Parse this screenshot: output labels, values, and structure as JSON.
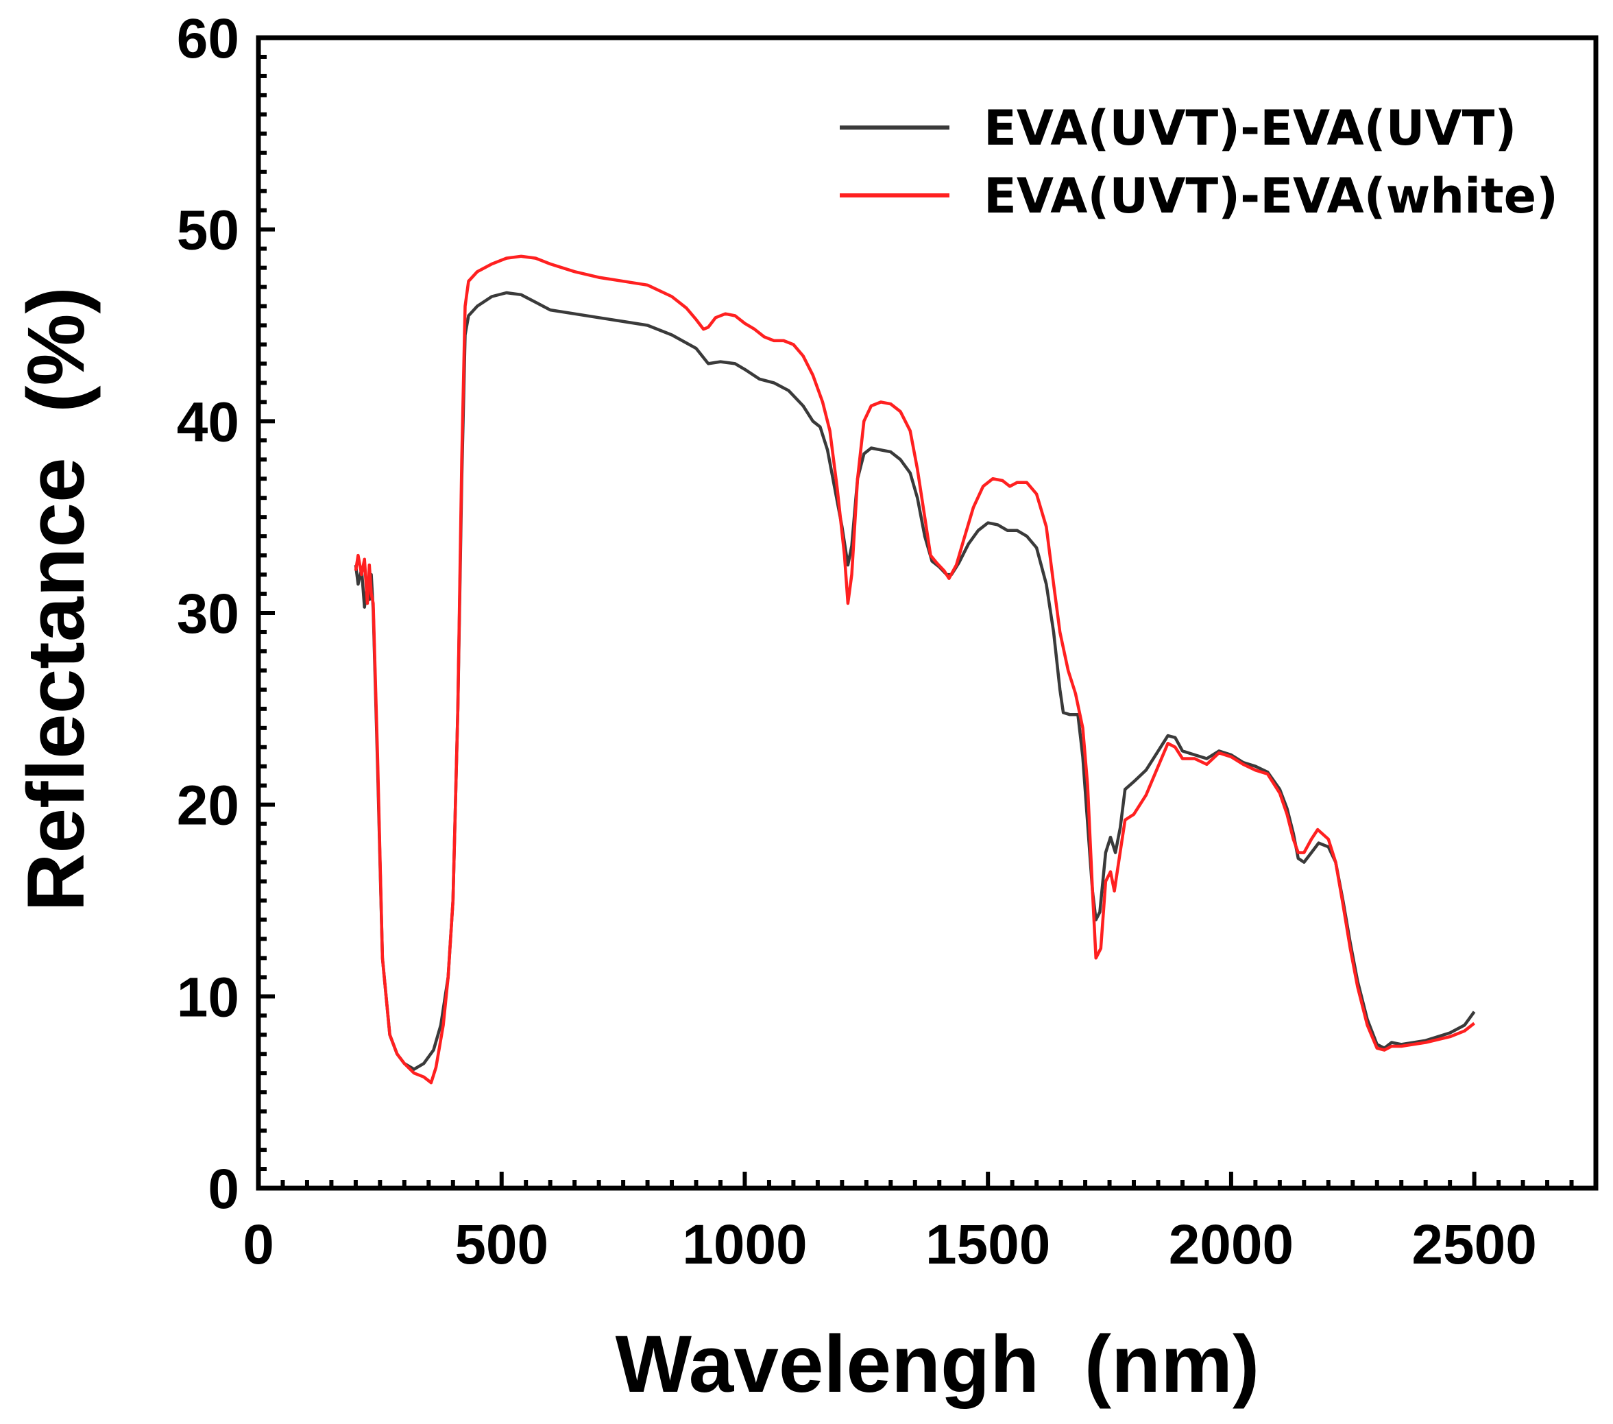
{
  "chart_data": {
    "type": "line",
    "title": "",
    "xlabel": "Wavelengh  (nm)",
    "ylabel": "Reflectance  (%)",
    "xlim": [
      0,
      2750
    ],
    "ylim": [
      0,
      60
    ],
    "x_ticks": [
      0,
      500,
      1000,
      1500,
      2000,
      2500
    ],
    "y_ticks": [
      0,
      10,
      20,
      30,
      40,
      50,
      60
    ],
    "x_tick_labels": [
      "0",
      "500",
      "1000",
      "1500",
      "2000",
      "2500"
    ],
    "y_tick_labels": [
      "0",
      "10",
      "20",
      "30",
      "40",
      "50",
      "60"
    ],
    "legend_position": "top-right",
    "grid": false,
    "series": [
      {
        "name": "EVA(UVT)-EVA(UVT)",
        "color": "#3a3a3a",
        "points": [
          [
            200,
            32.5
          ],
          [
            205,
            31.5
          ],
          [
            212,
            32.3
          ],
          [
            218,
            30.3
          ],
          [
            224,
            31.5
          ],
          [
            228,
            30.7
          ],
          [
            232,
            32.0
          ],
          [
            236,
            30.2
          ],
          [
            245,
            22.0
          ],
          [
            255,
            12.0
          ],
          [
            270,
            8.0
          ],
          [
            285,
            7.0
          ],
          [
            300,
            6.5
          ],
          [
            320,
            6.2
          ],
          [
            340,
            6.5
          ],
          [
            360,
            7.2
          ],
          [
            375,
            8.5
          ],
          [
            390,
            11.0
          ],
          [
            400,
            15.0
          ],
          [
            410,
            25.0
          ],
          [
            418,
            37.0
          ],
          [
            425,
            44.5
          ],
          [
            432,
            45.5
          ],
          [
            450,
            46.0
          ],
          [
            480,
            46.5
          ],
          [
            510,
            46.7
          ],
          [
            540,
            46.6
          ],
          [
            570,
            46.2
          ],
          [
            600,
            45.8
          ],
          [
            650,
            45.6
          ],
          [
            700,
            45.4
          ],
          [
            750,
            45.2
          ],
          [
            800,
            45.0
          ],
          [
            850,
            44.5
          ],
          [
            900,
            43.8
          ],
          [
            925,
            43.0
          ],
          [
            950,
            43.1
          ],
          [
            980,
            43.0
          ],
          [
            1000,
            42.7
          ],
          [
            1030,
            42.2
          ],
          [
            1060,
            42.0
          ],
          [
            1090,
            41.6
          ],
          [
            1120,
            40.8
          ],
          [
            1140,
            40.0
          ],
          [
            1155,
            39.7
          ],
          [
            1170,
            38.5
          ],
          [
            1185,
            36.5
          ],
          [
            1200,
            34.5
          ],
          [
            1212,
            32.5
          ],
          [
            1220,
            33.5
          ],
          [
            1232,
            37.0
          ],
          [
            1245,
            38.3
          ],
          [
            1260,
            38.6
          ],
          [
            1280,
            38.5
          ],
          [
            1300,
            38.4
          ],
          [
            1320,
            38.0
          ],
          [
            1340,
            37.3
          ],
          [
            1355,
            36.0
          ],
          [
            1370,
            34.0
          ],
          [
            1385,
            32.7
          ],
          [
            1400,
            32.4
          ],
          [
            1415,
            32.0
          ],
          [
            1425,
            32.0
          ],
          [
            1440,
            32.6
          ],
          [
            1460,
            33.6
          ],
          [
            1480,
            34.3
          ],
          [
            1500,
            34.7
          ],
          [
            1520,
            34.6
          ],
          [
            1540,
            34.3
          ],
          [
            1560,
            34.3
          ],
          [
            1580,
            34.0
          ],
          [
            1600,
            33.4
          ],
          [
            1620,
            31.5
          ],
          [
            1635,
            29.0
          ],
          [
            1648,
            26.0
          ],
          [
            1655,
            24.8
          ],
          [
            1668,
            24.7
          ],
          [
            1685,
            24.7
          ],
          [
            1695,
            22.5
          ],
          [
            1705,
            19.0
          ],
          [
            1715,
            15.5
          ],
          [
            1722,
            14.0
          ],
          [
            1730,
            14.4
          ],
          [
            1742,
            17.5
          ],
          [
            1752,
            18.3
          ],
          [
            1762,
            17.5
          ],
          [
            1772,
            18.8
          ],
          [
            1782,
            20.8
          ],
          [
            1800,
            21.2
          ],
          [
            1825,
            21.8
          ],
          [
            1850,
            22.8
          ],
          [
            1870,
            23.6
          ],
          [
            1885,
            23.5
          ],
          [
            1900,
            22.8
          ],
          [
            1925,
            22.6
          ],
          [
            1950,
            22.4
          ],
          [
            1975,
            22.8
          ],
          [
            2000,
            22.6
          ],
          [
            2025,
            22.2
          ],
          [
            2050,
            22.0
          ],
          [
            2075,
            21.7
          ],
          [
            2100,
            20.8
          ],
          [
            2115,
            19.8
          ],
          [
            2128,
            18.5
          ],
          [
            2138,
            17.2
          ],
          [
            2150,
            17.0
          ],
          [
            2165,
            17.5
          ],
          [
            2180,
            18.0
          ],
          [
            2200,
            17.8
          ],
          [
            2215,
            17.0
          ],
          [
            2230,
            15.0
          ],
          [
            2245,
            12.8
          ],
          [
            2260,
            10.8
          ],
          [
            2280,
            8.8
          ],
          [
            2300,
            7.5
          ],
          [
            2315,
            7.3
          ],
          [
            2330,
            7.6
          ],
          [
            2350,
            7.5
          ],
          [
            2400,
            7.7
          ],
          [
            2450,
            8.1
          ],
          [
            2480,
            8.5
          ],
          [
            2500,
            9.2
          ]
        ]
      },
      {
        "name": "EVA(UVT)-EVA(white)",
        "color": "#ff2020",
        "points": [
          [
            200,
            32.2
          ],
          [
            205,
            33.0
          ],
          [
            212,
            32.0
          ],
          [
            218,
            32.8
          ],
          [
            224,
            30.5
          ],
          [
            228,
            32.5
          ],
          [
            232,
            31.0
          ],
          [
            236,
            30.5
          ],
          [
            245,
            22.5
          ],
          [
            255,
            12.0
          ],
          [
            270,
            8.0
          ],
          [
            285,
            7.0
          ],
          [
            300,
            6.5
          ],
          [
            320,
            6.0
          ],
          [
            340,
            5.8
          ],
          [
            355,
            5.5
          ],
          [
            365,
            6.3
          ],
          [
            380,
            8.5
          ],
          [
            390,
            11.0
          ],
          [
            400,
            15.0
          ],
          [
            410,
            25.0
          ],
          [
            418,
            38.0
          ],
          [
            425,
            46.0
          ],
          [
            432,
            47.3
          ],
          [
            450,
            47.8
          ],
          [
            480,
            48.2
          ],
          [
            510,
            48.5
          ],
          [
            540,
            48.6
          ],
          [
            570,
            48.5
          ],
          [
            600,
            48.2
          ],
          [
            650,
            47.8
          ],
          [
            700,
            47.5
          ],
          [
            750,
            47.3
          ],
          [
            800,
            47.1
          ],
          [
            850,
            46.5
          ],
          [
            880,
            45.9
          ],
          [
            900,
            45.3
          ],
          [
            915,
            44.8
          ],
          [
            925,
            44.9
          ],
          [
            940,
            45.4
          ],
          [
            960,
            45.6
          ],
          [
            980,
            45.5
          ],
          [
            1000,
            45.1
          ],
          [
            1020,
            44.8
          ],
          [
            1040,
            44.4
          ],
          [
            1060,
            44.2
          ],
          [
            1080,
            44.2
          ],
          [
            1100,
            44.0
          ],
          [
            1120,
            43.4
          ],
          [
            1140,
            42.4
          ],
          [
            1160,
            41.0
          ],
          [
            1175,
            39.5
          ],
          [
            1190,
            36.5
          ],
          [
            1205,
            33.0
          ],
          [
            1212,
            30.5
          ],
          [
            1220,
            32.0
          ],
          [
            1232,
            37.0
          ],
          [
            1245,
            40.0
          ],
          [
            1260,
            40.8
          ],
          [
            1280,
            41.0
          ],
          [
            1300,
            40.9
          ],
          [
            1320,
            40.5
          ],
          [
            1340,
            39.5
          ],
          [
            1355,
            37.5
          ],
          [
            1370,
            35.0
          ],
          [
            1382,
            33.0
          ],
          [
            1395,
            32.6
          ],
          [
            1410,
            32.2
          ],
          [
            1420,
            31.8
          ],
          [
            1435,
            32.5
          ],
          [
            1450,
            33.8
          ],
          [
            1470,
            35.5
          ],
          [
            1490,
            36.6
          ],
          [
            1510,
            37.0
          ],
          [
            1530,
            36.9
          ],
          [
            1545,
            36.6
          ],
          [
            1560,
            36.8
          ],
          [
            1580,
            36.8
          ],
          [
            1600,
            36.2
          ],
          [
            1620,
            34.5
          ],
          [
            1635,
            31.5
          ],
          [
            1648,
            29.0
          ],
          [
            1665,
            27.0
          ],
          [
            1680,
            25.8
          ],
          [
            1695,
            24.0
          ],
          [
            1705,
            21.0
          ],
          [
            1715,
            15.5
          ],
          [
            1722,
            12.0
          ],
          [
            1732,
            12.5
          ],
          [
            1742,
            16.0
          ],
          [
            1752,
            16.5
          ],
          [
            1760,
            15.5
          ],
          [
            1770,
            17.2
          ],
          [
            1782,
            19.2
          ],
          [
            1800,
            19.5
          ],
          [
            1825,
            20.5
          ],
          [
            1850,
            22.0
          ],
          [
            1870,
            23.2
          ],
          [
            1885,
            23.0
          ],
          [
            1900,
            22.4
          ],
          [
            1925,
            22.4
          ],
          [
            1950,
            22.1
          ],
          [
            1975,
            22.7
          ],
          [
            2000,
            22.5
          ],
          [
            2025,
            22.1
          ],
          [
            2050,
            21.8
          ],
          [
            2075,
            21.6
          ],
          [
            2100,
            20.6
          ],
          [
            2115,
            19.5
          ],
          [
            2128,
            18.2
          ],
          [
            2138,
            17.5
          ],
          [
            2150,
            17.5
          ],
          [
            2165,
            18.2
          ],
          [
            2178,
            18.7
          ],
          [
            2200,
            18.2
          ],
          [
            2215,
            17.0
          ],
          [
            2230,
            14.8
          ],
          [
            2245,
            12.5
          ],
          [
            2260,
            10.5
          ],
          [
            2280,
            8.5
          ],
          [
            2300,
            7.3
          ],
          [
            2315,
            7.2
          ],
          [
            2330,
            7.4
          ],
          [
            2350,
            7.4
          ],
          [
            2400,
            7.6
          ],
          [
            2450,
            7.9
          ],
          [
            2480,
            8.2
          ],
          [
            2500,
            8.6
          ]
        ]
      }
    ]
  }
}
